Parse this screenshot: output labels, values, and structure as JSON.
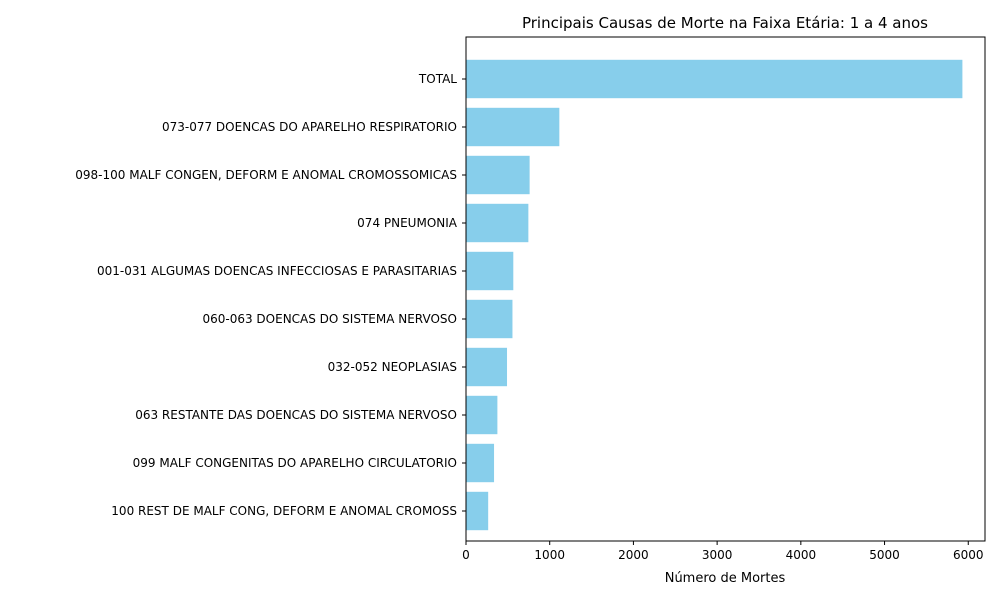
{
  "chart_data": {
    "type": "bar",
    "orientation": "horizontal",
    "title": "Principais Causas de Morte na Faixa Etária: 1 a 4 anos",
    "xlabel": "Número de Mortes",
    "ylabel": "",
    "xlim": [
      0,
      6200
    ],
    "xticks": [
      0,
      1000,
      2000,
      3000,
      4000,
      5000,
      6000
    ],
    "xtick_labels": [
      "0",
      "1000",
      "2000",
      "3000",
      "4000",
      "5000",
      "6000"
    ],
    "categories": [
      "TOTAL",
      "073-077 DOENCAS DO APARELHO RESPIRATORIO",
      "098-100 MALF CONGEN, DEFORM E ANOMAL CROMOSSOMICAS",
      "074 PNEUMONIA",
      "001-031 ALGUMAS DOENCAS INFECCIOSAS E PARASITARIAS",
      "060-063 DOENCAS DO SISTEMA NERVOSO",
      "032-052 NEOPLASIAS",
      "063 RESTANTE DAS DOENCAS DO SISTEMA NERVOSO",
      "099 MALF CONGENITAS DO APARELHO CIRCULATORIO",
      "100 REST DE MALF CONG, DEFORM E ANOMAL CROMOSS"
    ],
    "values": [
      5930,
      1115,
      760,
      745,
      565,
      555,
      490,
      375,
      335,
      265
    ],
    "grid": false,
    "bar_color": "#87ceeb"
  }
}
